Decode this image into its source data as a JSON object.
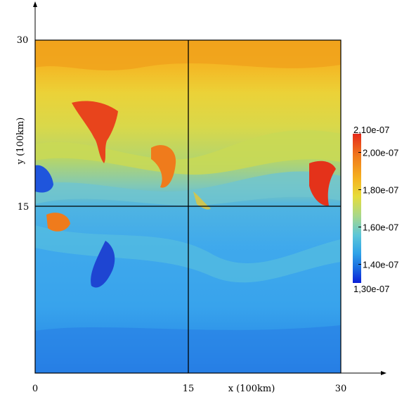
{
  "chart_data": {
    "type": "heatmap",
    "title": "",
    "xlabel": "x (100km)",
    "ylabel": "y (100km)",
    "xlim": [
      0,
      30
    ],
    "ylim": [
      0,
      30
    ],
    "x_ticks": [
      0,
      15,
      30
    ],
    "y_ticks": [
      15,
      30
    ],
    "x_tick_labels": [
      "0",
      "15",
      "30"
    ],
    "y_tick_labels": [
      "15",
      "30"
    ],
    "grid_lines": {
      "x": [
        15
      ],
      "y": [
        15
      ]
    },
    "colorbar": {
      "min": 1.3e-07,
      "max": 2.1e-07,
      "min_label": "1,30e-07",
      "max_label": "2,10e-07",
      "tick_labels": [
        {
          "value": 2e-07,
          "label": "2,00e-07"
        },
        {
          "value": 1.8e-07,
          "label": "1,80e-07"
        },
        {
          "value": 1.6e-07,
          "label": "1,60e-07"
        },
        {
          "value": 1.4e-07,
          "label": "1,40e-07"
        }
      ],
      "colormap": [
        "#0b1fd8",
        "#1a6be0",
        "#2fa3e8",
        "#5cc6d8",
        "#a8d88a",
        "#e6dc3a",
        "#f5b21f",
        "#f07a1c",
        "#e52a1a"
      ]
    },
    "field_summary": [
      {
        "region": "top band y 28-30",
        "value": 1.95e-07
      },
      {
        "region": "band y 24-28",
        "value": 1.85e-07
      },
      {
        "region": "band y 20-24",
        "value": 1.78e-07
      },
      {
        "region": "band y 16-20",
        "value": 1.7e-07
      },
      {
        "region": "band y 8-15",
        "value": 1.58e-07
      },
      {
        "region": "band y 0-8",
        "value": 1.52e-07
      }
    ]
  }
}
